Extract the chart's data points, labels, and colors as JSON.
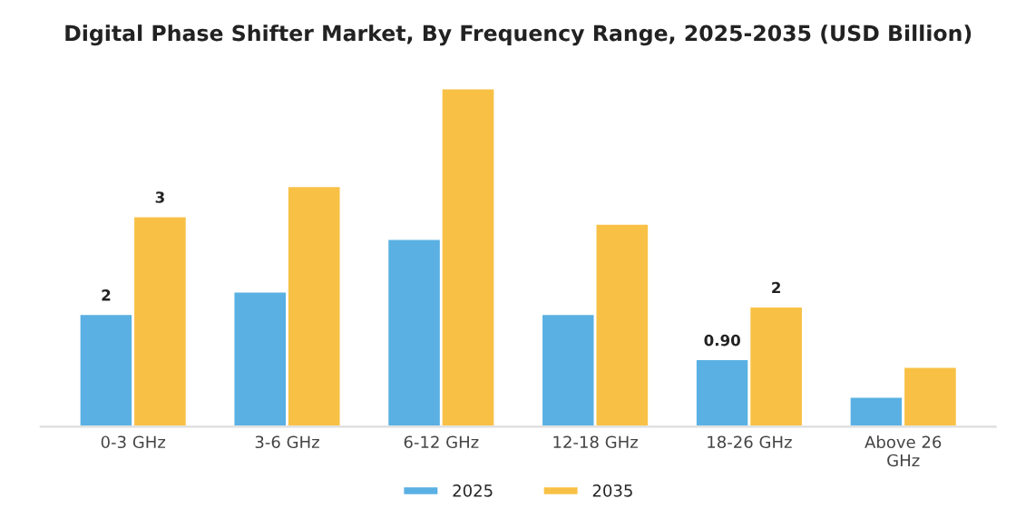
{
  "chart_data": {
    "type": "bar",
    "title": "Digital Phase Shifter Market, By Frequency Range, 2025-2035 (USD Billion)",
    "categories": [
      "0-3 GHz",
      "3-6 GHz",
      "6-12 GHz",
      "12-18 GHz",
      "18-26 GHz",
      "Above 26\nGHz"
    ],
    "series": [
      {
        "name": "2025",
        "color": "#5ab0e3",
        "values": [
          1.5,
          1.8,
          2.5,
          1.5,
          0.9,
          0.4
        ],
        "value_labels": [
          "2",
          null,
          null,
          null,
          "0.90",
          null
        ]
      },
      {
        "name": "2035",
        "color": "#f8c146",
        "values": [
          2.8,
          3.2,
          4.5,
          2.7,
          1.6,
          0.8
        ],
        "value_labels": [
          "3",
          null,
          null,
          null,
          "2",
          null
        ]
      }
    ],
    "tick_labels": "x",
    "grid": false,
    "legend": "bottom"
  }
}
